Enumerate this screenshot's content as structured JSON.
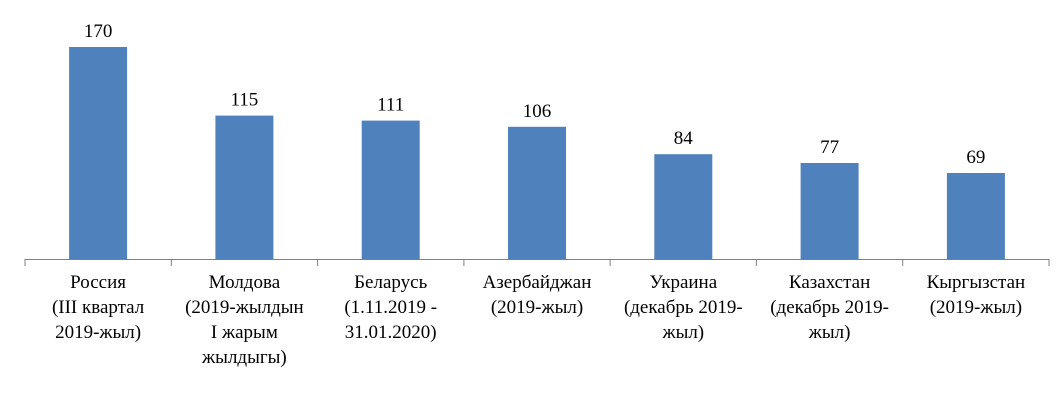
{
  "chart_data": {
    "type": "bar",
    "categories": [
      [
        "Россия",
        "(III квартал",
        "2019-жыл)"
      ],
      [
        "Молдова",
        "(2019-жылдын",
        "I жарым",
        "жылдыгы)"
      ],
      [
        "Беларусь",
        "(1.11.2019 -",
        "31.01.2020)"
      ],
      [
        "Азербайджан",
        "(2019-жыл)"
      ],
      [
        "Украина",
        "(декабрь 2019-",
        "жыл)"
      ],
      [
        "Казахстан",
        "(декабрь 2019-",
        "жыл)"
      ],
      [
        "Кыргызстан",
        "(2019-жыл)"
      ]
    ],
    "values": [
      170,
      115,
      111,
      106,
      84,
      77,
      69
    ],
    "data_labels": [
      "170",
      "115",
      "111",
      "106",
      "84",
      "77",
      "69"
    ],
    "title": "",
    "xlabel": "",
    "ylabel": "",
    "ylim": [
      0,
      180
    ],
    "grid": false,
    "legend": "none",
    "bar_color": "#4F81BD",
    "axis_color": "#808080"
  }
}
